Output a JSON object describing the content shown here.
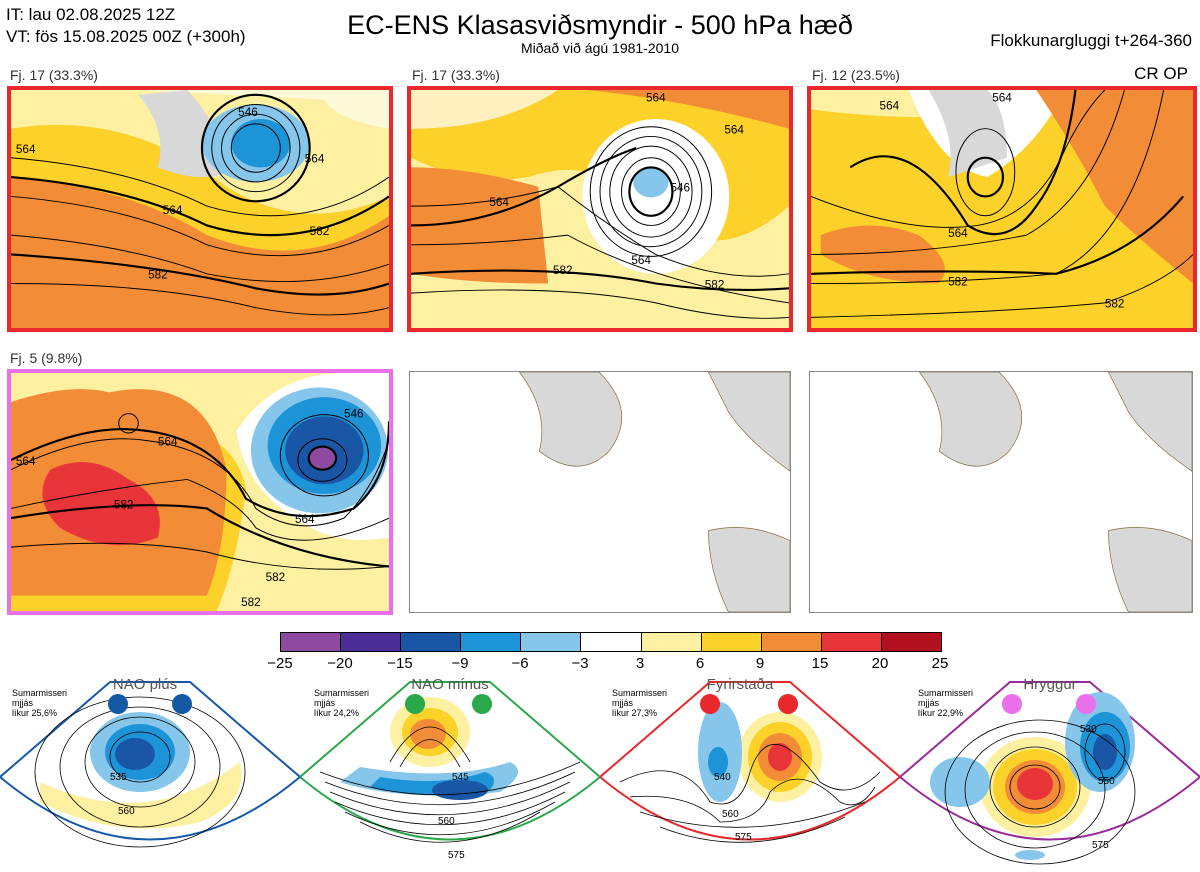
{
  "header": {
    "it_line": "IT: lau 02.08.2025 12Z",
    "vt_line": "VT: fös 15.08.2025 00Z  (+300h)",
    "title": "EC-ENS Klasasviðsmyndir - 500 hPa hæð",
    "subtitle": "Miðað við ágú 1981-2010",
    "window": "Flokkunargluggi t+264-360",
    "cr_op": "CR OP"
  },
  "clusters": [
    {
      "label": "Fj. 17 (33.3%)",
      "contours": [
        "546",
        "564",
        "564",
        "564",
        "582",
        "582"
      ],
      "frame_color": "#e8282c"
    },
    {
      "label": "Fj. 17 (33.3%)",
      "contours": [
        "564",
        "564",
        "546",
        "564",
        "564",
        "582",
        "582"
      ],
      "frame_color": "#e8282c"
    },
    {
      "label": "Fj. 12 (23.5%)",
      "contours": [
        "564",
        "564",
        "564",
        "582",
        "582"
      ],
      "frame_color": "#e8282c"
    },
    {
      "label": "Fj. 5 (9.8%)",
      "contours": [
        "546",
        "564",
        "564",
        "564",
        "582",
        "582",
        "582"
      ],
      "frame_color": "#ea6fea"
    }
  ],
  "colorbar": {
    "ticks": [
      "−25",
      "−20",
      "−15",
      "−9",
      "−6",
      "−3",
      "3",
      "6",
      "9",
      "15",
      "20",
      "25"
    ],
    "colors": [
      "#8e4a9e",
      "#4b2f96",
      "#1a56a6",
      "#1d93d8",
      "#85c6ea",
      "#ffffff",
      "#fdf0a1",
      "#fcd12a",
      "#f28c37",
      "#e8353a",
      "#b2101e"
    ]
  },
  "regimes": [
    {
      "name": "NAO plús",
      "note": [
        "Sumarmisseri",
        "mjjás",
        "líkur 25,6%"
      ],
      "color": "#1458a6",
      "labels": [
        "535",
        "560"
      ]
    },
    {
      "name": "NAO mínus",
      "note": [
        "Sumarmisseri",
        "mjjás",
        "líkur 24,2%"
      ],
      "color": "#2aa84a",
      "labels": [
        "545",
        "560",
        "575"
      ]
    },
    {
      "name": "Fyrirstaða",
      "note": [
        "Sumarmisseri",
        "mjjás",
        "líkur 27,3%"
      ],
      "color": "#e8282c",
      "labels": [
        "540",
        "560",
        "575"
      ]
    },
    {
      "name": "Hryggur",
      "note": [
        "Sumarmisseri",
        "mjjás",
        "líkur 22,9%"
      ],
      "color": "#992a9a",
      "labels": [
        "530",
        "550",
        "575"
      ]
    }
  ]
}
